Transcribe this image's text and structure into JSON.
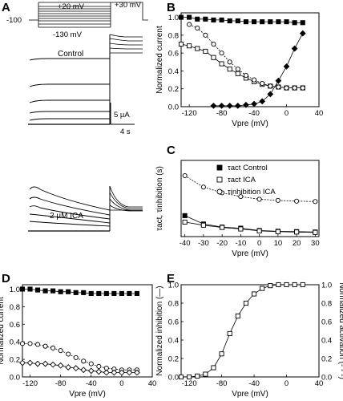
{
  "panel_letters": [
    "A",
    "B",
    "C",
    "D",
    "E"
  ],
  "panel_a": {
    "protocol_labels": {
      "hold": "-100",
      "step_top": "+20 mV",
      "step_bottom": "-130 mV",
      "test": "+30 mV"
    },
    "control_label": "Control",
    "ica_label": "2 µM ICA",
    "scale_current": "5 µA",
    "scale_time": "4 s"
  },
  "chart_data": [
    {
      "panel": "B",
      "type": "scatter",
      "ylabel": "Normalized current",
      "xlabel": "Vpre (mV)",
      "xlim": [
        -130,
        40
      ],
      "ylim": [
        0,
        1.05
      ],
      "xticks": [
        "-120",
        "-80",
        "-40",
        "0",
        "40"
      ],
      "yticks": [
        "0.0",
        "0.2",
        "0.4",
        "0.6",
        "0.8",
        "1.0"
      ],
      "series": [
        {
          "marker": "filled-square",
          "x": [
            -130,
            -120,
            -110,
            -100,
            -90,
            -80,
            -70,
            -60,
            -50,
            -40,
            -30,
            -20,
            -10,
            0,
            10,
            20
          ],
          "y": [
            1.0,
            1.0,
            0.98,
            0.98,
            0.97,
            0.97,
            0.96,
            0.96,
            0.95,
            0.95,
            0.95,
            0.95,
            0.95,
            0.95,
            0.94,
            0.94
          ]
        },
        {
          "marker": "open-square",
          "x": [
            -130,
            -120,
            -110,
            -100,
            -90,
            -80,
            -70,
            -60,
            -50,
            -40,
            -30,
            -20,
            -10,
            0,
            10,
            20
          ],
          "y": [
            0.7,
            0.68,
            0.65,
            0.62,
            0.55,
            0.48,
            0.42,
            0.37,
            0.32,
            0.28,
            0.25,
            0.23,
            0.22,
            0.21,
            0.21,
            0.21
          ]
        },
        {
          "marker": "open-circle",
          "x": [
            -120,
            -110,
            -100,
            -90,
            -80,
            -70,
            -60,
            -50,
            -40,
            -30,
            -20,
            -10,
            0,
            10,
            20
          ],
          "y": [
            0.92,
            0.88,
            0.8,
            0.7,
            0.6,
            0.5,
            0.42,
            0.35,
            0.3,
            0.26,
            0.23,
            0.22,
            0.21,
            0.21,
            0.21
          ]
        },
        {
          "marker": "filled-diamond",
          "x": [
            -90,
            -80,
            -70,
            -60,
            -50,
            -40,
            -30,
            -20,
            -10,
            0,
            10,
            20
          ],
          "y": [
            0.01,
            0.01,
            0.01,
            0.01,
            0.02,
            0.03,
            0.06,
            0.14,
            0.29,
            0.45,
            0.65,
            0.82
          ]
        }
      ]
    },
    {
      "panel": "C",
      "type": "scatter",
      "ylabel": "τact, τinhibition (s)",
      "xlabel": "Vpre (mV)",
      "xlim": [
        -42,
        32
      ],
      "ylim": [
        0,
        2.0
      ],
      "xticks": [
        "-40",
        "-30",
        "-20",
        "-10",
        "0",
        "10",
        "20",
        "30"
      ],
      "legend": [
        {
          "marker": "filled-square",
          "label": "τact Control"
        },
        {
          "marker": "open-square",
          "label": "τact ICA"
        },
        {
          "marker": "open-circle",
          "label": "τinhibition ICA"
        }
      ],
      "series": [
        {
          "marker": "filled-square",
          "x": [
            -40,
            -30,
            -20,
            -10,
            0,
            10,
            20,
            30
          ],
          "y": [
            0.55,
            0.33,
            0.25,
            0.22,
            0.16,
            0.14,
            0.13,
            0.12
          ]
        },
        {
          "marker": "open-square",
          "x": [
            -40,
            -30,
            -20,
            -10,
            0,
            10,
            20,
            30
          ],
          "y": [
            0.38,
            0.3,
            0.24,
            0.2,
            0.15,
            0.13,
            0.12,
            0.11
          ]
        },
        {
          "marker": "open-circle",
          "x": [
            -40,
            -30,
            -20,
            -10,
            0,
            10,
            20,
            30
          ],
          "y": [
            1.6,
            1.3,
            1.15,
            1.05,
            0.98,
            0.95,
            0.93,
            0.92
          ]
        }
      ]
    },
    {
      "panel": "D",
      "type": "scatter",
      "ylabel": "Normalized current",
      "xlabel": "Vpre (mV)",
      "xlim": [
        -130,
        40
      ],
      "ylim": [
        0,
        1.05
      ],
      "xticks": [
        "-120",
        "-80",
        "-40",
        "0",
        "40"
      ],
      "yticks": [
        "0.0",
        "0.2",
        "0.4",
        "0.6",
        "0.8",
        "1.0"
      ],
      "series": [
        {
          "marker": "filled-square",
          "x": [
            -130,
            -120,
            -110,
            -100,
            -90,
            -80,
            -70,
            -60,
            -50,
            -40,
            -30,
            -20,
            -10,
            0,
            10,
            20
          ],
          "y": [
            1.0,
            1.0,
            0.99,
            0.98,
            0.98,
            0.97,
            0.97,
            0.96,
            0.96,
            0.95,
            0.95,
            0.95,
            0.95,
            0.95,
            0.95,
            0.95
          ]
        },
        {
          "marker": "open-circle",
          "x": [
            -130,
            -120,
            -110,
            -100,
            -90,
            -80,
            -70,
            -60,
            -50,
            -40,
            -30,
            -20,
            -10,
            0,
            10,
            20
          ],
          "y": [
            0.38,
            0.38,
            0.37,
            0.35,
            0.33,
            0.3,
            0.26,
            0.22,
            0.18,
            0.15,
            0.12,
            0.1,
            0.09,
            0.08,
            0.08,
            0.08
          ]
        },
        {
          "marker": "open-diamond",
          "x": [
            -130,
            -120,
            -110,
            -100,
            -90,
            -80,
            -70,
            -60,
            -50,
            -40,
            -30,
            -20,
            -10,
            0,
            10,
            20
          ],
          "y": [
            0.16,
            0.16,
            0.15,
            0.15,
            0.14,
            0.13,
            0.11,
            0.1,
            0.08,
            0.07,
            0.06,
            0.05,
            0.05,
            0.05,
            0.05,
            0.05
          ]
        }
      ]
    },
    {
      "panel": "E",
      "type": "scatter",
      "ylabel": "Normalized inhibition (—)",
      "ylabel_right": "Normalized activation (- - -)",
      "xlabel": "Vpre (mV)",
      "xlim": [
        -130,
        40
      ],
      "ylim": [
        0,
        1.0
      ],
      "xticks": [
        "-120",
        "-80",
        "-40",
        "0",
        "40"
      ],
      "yticks": [
        "0.0",
        "0.2",
        "0.4",
        "0.6",
        "0.8",
        "1.0"
      ],
      "series": [
        {
          "marker": "open-square",
          "x": [
            -130,
            -120,
            -110,
            -100,
            -90,
            -80,
            -70,
            -60,
            -50,
            -40,
            -30,
            -20,
            -10,
            0,
            10,
            20
          ],
          "y": [
            0.0,
            0.0,
            0.01,
            0.03,
            0.1,
            0.25,
            0.47,
            0.66,
            0.8,
            0.9,
            0.96,
            0.99,
            1.0,
            1.0,
            1.0,
            1.0
          ]
        }
      ]
    }
  ]
}
